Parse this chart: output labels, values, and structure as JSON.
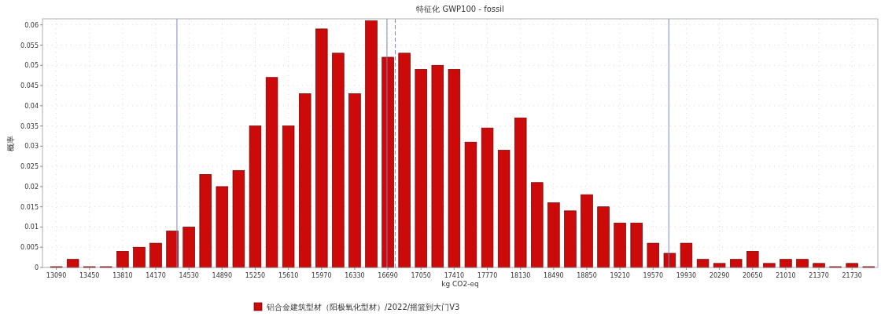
{
  "chart_data": {
    "type": "histogram",
    "title": "特征化 GWP100 - fossil",
    "xlabel": "kg CO2-eq",
    "ylabel": "概率",
    "bins": [
      13000,
      13180,
      13360,
      13540,
      13720,
      13900,
      14080,
      14260,
      14440,
      14620,
      14800,
      14980,
      15160,
      15340,
      15520,
      15700,
      15880,
      16060,
      16240,
      16420,
      16600,
      16780,
      16960,
      17140,
      17320,
      17500,
      17680,
      17860,
      18040,
      18220,
      18400,
      18580,
      18760,
      18940,
      19120,
      19300,
      19480,
      19660,
      19840,
      20020,
      20200,
      20380,
      20560,
      20740,
      20920,
      21100,
      21280,
      21460,
      21640,
      21820,
      22000
    ],
    "series": [
      {
        "name": "铝合金建筑型材（阳极氧化型材）/2022/摇篮到大门V3",
        "color": "#cc0a0a",
        "values": [
          0.0002,
          0.002,
          0.0002,
          0.0002,
          0.004,
          0.005,
          0.006,
          0.009,
          0.01,
          0.023,
          0.02,
          0.024,
          0.035,
          0.047,
          0.035,
          0.043,
          0.059,
          0.053,
          0.043,
          0.061,
          0.052,
          0.053,
          0.049,
          0.05,
          0.049,
          0.031,
          0.0345,
          0.029,
          0.037,
          0.021,
          0.016,
          0.014,
          0.018,
          0.015,
          0.011,
          0.011,
          0.006,
          0.0035,
          0.006,
          0.002,
          0.001,
          0.002,
          0.004,
          0.001,
          0.002,
          0.002,
          0.001,
          0.0002,
          0.001,
          0.0002
        ]
      }
    ],
    "xlim": [
      12940,
      22010
    ],
    "ylim": [
      0,
      0.0615
    ],
    "xticks": [
      13090,
      13450,
      13810,
      14170,
      14530,
      14890,
      15250,
      15610,
      15970,
      16330,
      16690,
      17050,
      17410,
      17770,
      18130,
      18490,
      18850,
      19210,
      19570,
      19930,
      20290,
      20650,
      21010,
      21370,
      21730
    ],
    "yticks": [
      0,
      0.005,
      0.01,
      0.015,
      0.02,
      0.025,
      0.03,
      0.035,
      0.04,
      0.045,
      0.05,
      0.055,
      0.06
    ],
    "ref_lines": [
      {
        "axis": "x",
        "value": 14400,
        "color": "#7d84c8",
        "line_style": "solid"
      },
      {
        "axis": "x",
        "value": 16680,
        "color": "#7d84c8",
        "line_style": "solid"
      },
      {
        "axis": "x",
        "value": 16770,
        "color": "#7d84c8",
        "line_style": "dashed"
      },
      {
        "axis": "x",
        "value": 19740,
        "color": "#7d84c8",
        "line_style": "solid"
      }
    ],
    "grid": true,
    "legend": "bottom"
  }
}
